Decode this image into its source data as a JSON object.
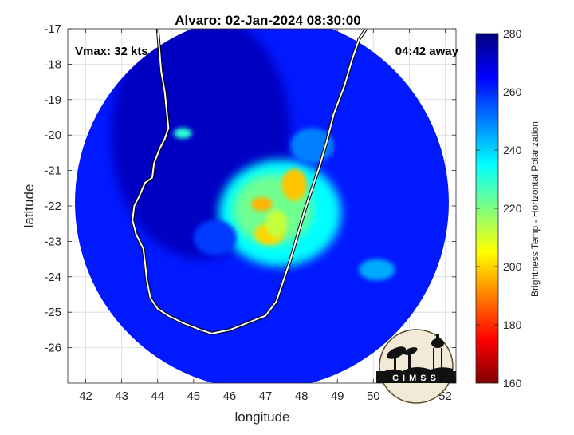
{
  "chart_data": {
    "type": "heatmap",
    "title": "Alvaro: 02-Jan-2024 08:30:00",
    "xlabel": "longitude",
    "ylabel": "latitude",
    "xlim": [
      41.5,
      52.3
    ],
    "ylim": [
      -27.0,
      -17.0
    ],
    "xticks": [
      42,
      43,
      44,
      45,
      46,
      47,
      48,
      49,
      50,
      51,
      52
    ],
    "yticks": [
      -17,
      -18,
      -19,
      -20,
      -21,
      -22,
      -23,
      -24,
      -25,
      -26
    ],
    "grid": true,
    "annotations": {
      "vmax": "Vmax: 32 kts",
      "time_away": "04:42 away"
    },
    "colorbar": {
      "label": "Brightness Temp - Horizontal Polarization",
      "min": 160,
      "max": 280,
      "ticks": [
        280,
        260,
        240,
        220,
        200,
        180,
        160
      ]
    },
    "swath": {
      "center_lon": 46.9,
      "center_lat": -21.9,
      "radius_deg": 5.2
    },
    "coastline": [
      [
        44.0,
        -17.0
      ],
      [
        44.05,
        -17.6
      ],
      [
        44.1,
        -18.2
      ],
      [
        44.2,
        -18.8
      ],
      [
        44.25,
        -19.3
      ],
      [
        44.3,
        -19.8
      ],
      [
        44.2,
        -20.1
      ],
      [
        44.05,
        -20.4
      ],
      [
        43.9,
        -20.8
      ],
      [
        43.85,
        -21.2
      ],
      [
        43.65,
        -21.35
      ],
      [
        43.5,
        -21.7
      ],
      [
        43.35,
        -22.0
      ],
      [
        43.3,
        -22.4
      ],
      [
        43.4,
        -22.8
      ],
      [
        43.6,
        -23.2
      ],
      [
        43.65,
        -23.6
      ],
      [
        43.7,
        -24.1
      ],
      [
        43.8,
        -24.6
      ],
      [
        44.0,
        -24.9
      ],
      [
        44.3,
        -25.1
      ],
      [
        44.7,
        -25.3
      ],
      [
        45.2,
        -25.5
      ],
      [
        45.5,
        -25.6
      ],
      [
        46.0,
        -25.5
      ],
      [
        46.5,
        -25.3
      ],
      [
        47.0,
        -25.1
      ],
      [
        47.3,
        -24.7
      ],
      [
        47.5,
        -24.1
      ],
      [
        47.7,
        -23.5
      ],
      [
        47.9,
        -22.8
      ],
      [
        48.1,
        -22.1
      ],
      [
        48.3,
        -21.5
      ],
      [
        48.5,
        -20.9
      ],
      [
        48.7,
        -20.2
      ],
      [
        48.9,
        -19.4
      ],
      [
        49.2,
        -18.6
      ],
      [
        49.4,
        -17.9
      ],
      [
        49.6,
        -17.3
      ],
      [
        49.8,
        -17.0
      ]
    ],
    "features": [
      {
        "lon": 47.4,
        "lat": -22.2,
        "rx": 1.7,
        "ry": 1.5,
        "value": 235
      },
      {
        "lon": 47.2,
        "lat": -22.1,
        "rx": 1.1,
        "ry": 1.0,
        "value": 222
      },
      {
        "lon": 47.8,
        "lat": -21.4,
        "rx": 0.35,
        "ry": 0.45,
        "value": 198
      },
      {
        "lon": 46.9,
        "lat": -21.95,
        "rx": 0.3,
        "ry": 0.2,
        "value": 196
      },
      {
        "lon": 47.1,
        "lat": -22.8,
        "rx": 0.4,
        "ry": 0.3,
        "value": 200
      },
      {
        "lon": 47.3,
        "lat": -22.5,
        "rx": 0.3,
        "ry": 0.4,
        "value": 212
      },
      {
        "lon": 44.7,
        "lat": -19.95,
        "rx": 0.25,
        "ry": 0.15,
        "value": 230
      },
      {
        "lon": 50.1,
        "lat": -23.8,
        "rx": 0.5,
        "ry": 0.3,
        "value": 245
      },
      {
        "lon": 48.3,
        "lat": -20.3,
        "rx": 0.6,
        "ry": 0.5,
        "value": 250
      },
      {
        "lon": 45.6,
        "lat": -22.9,
        "rx": 0.6,
        "ry": 0.5,
        "value": 258
      }
    ],
    "cold_region": {
      "lon": 45.2,
      "lat": -20.0,
      "rx": 2.5,
      "ry": 3.5,
      "value": 272
    }
  },
  "logo": {
    "text": "CIMSS"
  }
}
